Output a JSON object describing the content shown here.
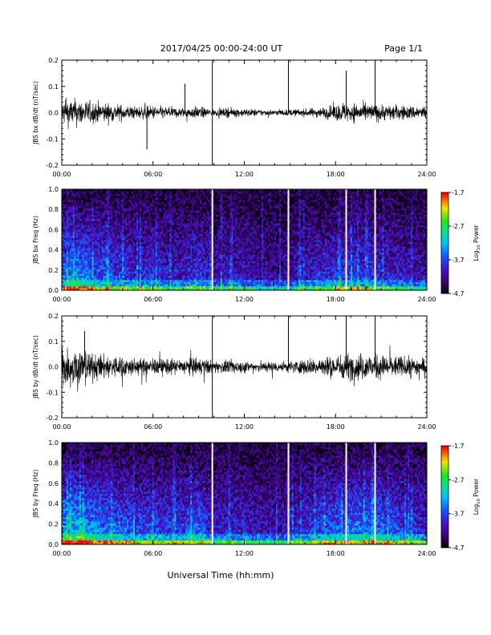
{
  "header": {
    "title": "2017/04/25  00:00-24:00 UT",
    "page": "Page 1/1"
  },
  "footer": {
    "xlabel": "Universal Time (hh:mm)"
  },
  "colorbar": {
    "ticks": [
      "-1.7",
      "-2.7",
      "-3.7",
      "-4.7"
    ],
    "title": "Log",
    "subscript": "10",
    "suffix": " Power",
    "range": [
      -4.7,
      -1.7
    ]
  },
  "chart_data": [
    {
      "type": "line",
      "ylabel": "JBS bx dB/dt (nT/sec)",
      "ylim": [
        -0.2,
        0.2
      ],
      "yticks": [
        "0.2",
        "0.1",
        "0.0",
        "-0.1",
        "-0.2"
      ],
      "xticks": [
        "00:00",
        "06:00",
        "12:00",
        "18:00",
        "24:00"
      ],
      "xlim_hours": [
        0,
        24
      ],
      "series_envelope": {
        "hours": [
          0,
          1,
          2,
          3,
          4,
          5,
          6,
          7,
          8,
          9,
          10,
          11,
          12,
          13,
          14,
          15,
          16,
          17,
          18,
          19,
          20,
          21,
          22,
          23,
          24
        ],
        "amplitude": [
          0.045,
          0.05,
          0.04,
          0.035,
          0.028,
          0.022,
          0.025,
          0.02,
          0.018,
          0.022,
          0.012,
          0.016,
          0.015,
          0.012,
          0.01,
          0.012,
          0.014,
          0.018,
          0.03,
          0.035,
          0.032,
          0.03,
          0.028,
          0.025,
          0.025
        ]
      },
      "spikes": [
        {
          "hour": 9.9,
          "value": 0.2
        },
        {
          "hour": 9.9,
          "value": -0.2
        },
        {
          "hour": 14.9,
          "value": 0.2
        },
        {
          "hour": 18.7,
          "value": 0.16
        },
        {
          "hour": 20.6,
          "value": 0.2
        },
        {
          "hour": 8.1,
          "value": 0.11
        },
        {
          "hour": 5.6,
          "value": -0.14
        }
      ]
    },
    {
      "type": "heatmap",
      "ylabel": "JBS bx Freq (Hz)",
      "ylim": [
        0,
        1
      ],
      "yticks": [
        "1.0",
        "0.8",
        "0.6",
        "0.4",
        "0.2",
        "0.0"
      ],
      "xticks": [
        "00:00",
        "06:00",
        "12:00",
        "18:00",
        "24:00"
      ],
      "xlim_hours": [
        0,
        24
      ],
      "gaps_hours": [
        9.9,
        14.9,
        18.7,
        20.6
      ],
      "activity_by_hour": [
        0.55,
        0.6,
        0.5,
        0.45,
        0.4,
        0.35,
        0.38,
        0.3,
        0.3,
        0.4,
        0.22,
        0.3,
        0.28,
        0.2,
        0.18,
        0.2,
        0.28,
        0.35,
        0.38,
        0.4,
        0.38,
        0.35,
        0.3,
        0.25,
        0.25
      ]
    },
    {
      "type": "line",
      "ylabel": "JBS by dB/dt (nT/sec)",
      "ylim": [
        -0.2,
        0.2
      ],
      "yticks": [
        "0.2",
        "0.1",
        "0.0",
        "-0.1",
        "-0.2"
      ],
      "xticks": [
        "00:00",
        "06:00",
        "12:00",
        "18:00",
        "24:00"
      ],
      "xlim_hours": [
        0,
        24
      ],
      "series_envelope": {
        "hours": [
          0,
          1,
          2,
          3,
          4,
          5,
          6,
          7,
          8,
          9,
          10,
          11,
          12,
          13,
          14,
          15,
          16,
          17,
          18,
          19,
          20,
          21,
          22,
          23,
          24
        ],
        "amplitude": [
          0.07,
          0.08,
          0.05,
          0.045,
          0.04,
          0.03,
          0.03,
          0.03,
          0.03,
          0.035,
          0.022,
          0.025,
          0.022,
          0.02,
          0.02,
          0.022,
          0.028,
          0.035,
          0.045,
          0.05,
          0.05,
          0.045,
          0.04,
          0.035,
          0.035
        ]
      },
      "spikes": [
        {
          "hour": 9.9,
          "value": 0.2
        },
        {
          "hour": 9.9,
          "value": -0.2
        },
        {
          "hour": 14.9,
          "value": 0.2
        },
        {
          "hour": 18.7,
          "value": 0.2
        },
        {
          "hour": 20.6,
          "value": 0.2
        },
        {
          "hour": 1.5,
          "value": 0.14
        }
      ]
    },
    {
      "type": "heatmap",
      "ylabel": "JBS by Freq (Hz)",
      "ylim": [
        0,
        1
      ],
      "yticks": [
        "1.0",
        "0.8",
        "0.6",
        "0.4",
        "0.2",
        "0.0"
      ],
      "xticks": [
        "00:00",
        "06:00",
        "12:00",
        "18:00",
        "24:00"
      ],
      "xlim_hours": [
        0,
        24
      ],
      "gaps_hours": [
        9.9,
        14.9,
        18.7,
        20.6
      ],
      "activity_by_hour": [
        0.65,
        0.7,
        0.6,
        0.55,
        0.5,
        0.42,
        0.45,
        0.4,
        0.42,
        0.5,
        0.3,
        0.35,
        0.32,
        0.28,
        0.25,
        0.28,
        0.38,
        0.45,
        0.5,
        0.55,
        0.52,
        0.5,
        0.45,
        0.38,
        0.35
      ]
    }
  ]
}
